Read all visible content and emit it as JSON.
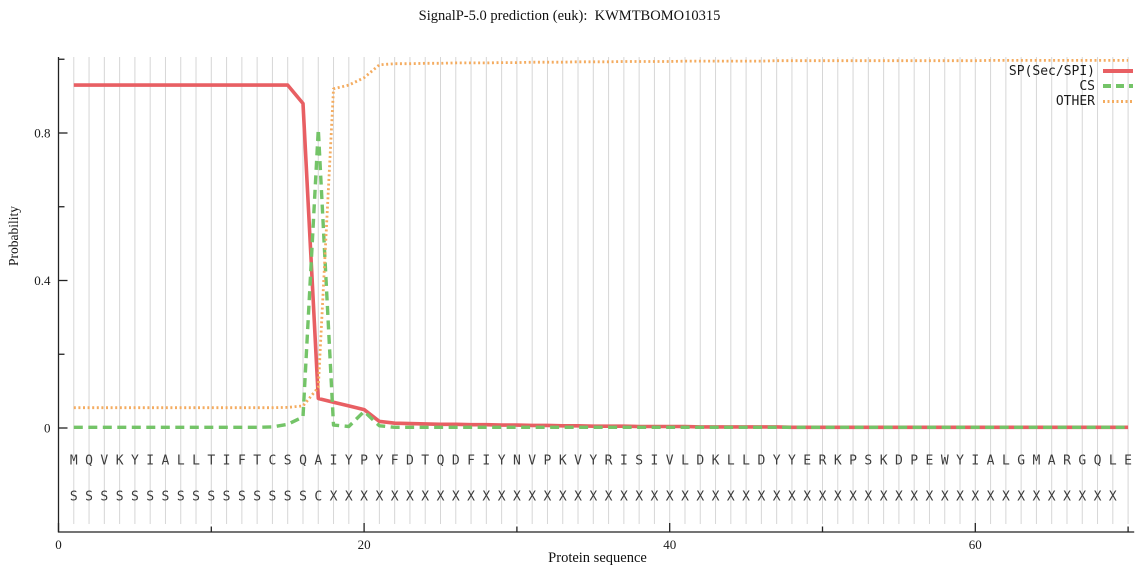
{
  "title": "SignalP-5.0 prediction (euk):  KWMTBOMO10315",
  "chart_data": {
    "type": "line",
    "title": "SignalP-5.0 prediction (euk):  KWMTBOMO10315",
    "xlabel": "Protein sequence",
    "ylabel": "Probability",
    "xlim": [
      0,
      70.4
    ],
    "ylim": [
      0,
      1.01
    ],
    "grid": "vertical-per-residue",
    "legend_position": "top-right",
    "x_ticks": {
      "major_values": [
        0,
        20,
        40,
        60
      ],
      "major_labels": [
        "0",
        "20",
        "40",
        "60"
      ],
      "minor_values": [
        10,
        30,
        50,
        70
      ]
    },
    "y_ticks": {
      "major_values": [
        0,
        0.4,
        0.8
      ],
      "major_labels": [
        "0",
        "0.4",
        "0.8"
      ],
      "minor_values": [
        0.2,
        0.6,
        1.0
      ]
    },
    "colors": {
      "grid": "#d6d6d6",
      "axis": "#222222",
      "tick_text": "#1a1a1a",
      "sequence_text": "#3b3b3b"
    },
    "x": [
      1,
      2,
      3,
      4,
      5,
      6,
      7,
      8,
      9,
      10,
      11,
      12,
      13,
      14,
      15,
      16,
      17,
      18,
      19,
      20,
      21,
      22,
      23,
      24,
      25,
      26,
      27,
      28,
      29,
      30,
      31,
      32,
      33,
      34,
      35,
      36,
      37,
      38,
      39,
      40,
      41,
      42,
      43,
      44,
      45,
      46,
      47,
      48,
      49,
      50,
      51,
      52,
      53,
      54,
      55,
      56,
      57,
      58,
      59,
      60,
      61,
      62,
      63,
      64,
      65,
      66,
      67,
      68,
      69,
      70
    ],
    "series": [
      {
        "name": "SP(Sec/SPI)",
        "color": "#e85f63",
        "style": "solid",
        "values": [
          0.93,
          0.93,
          0.93,
          0.93,
          0.93,
          0.93,
          0.93,
          0.93,
          0.93,
          0.93,
          0.93,
          0.93,
          0.93,
          0.93,
          0.93,
          0.88,
          0.08,
          0.07,
          0.06,
          0.05,
          0.018,
          0.013,
          0.012,
          0.011,
          0.01,
          0.01,
          0.009,
          0.009,
          0.008,
          0.008,
          0.007,
          0.007,
          0.006,
          0.006,
          0.005,
          0.005,
          0.005,
          0.004,
          0.004,
          0.004,
          0.004,
          0.003,
          0.003,
          0.003,
          0.003,
          0.003,
          0.003,
          0.002,
          0.002,
          0.002,
          0.002,
          0.002,
          0.002,
          0.002,
          0.002,
          0.002,
          0.002,
          0.002,
          0.002,
          0.002,
          0.002,
          0.002,
          0.002,
          0.002,
          0.002,
          0.002,
          0.002,
          0.002,
          0.002,
          0.002
        ]
      },
      {
        "name": "CS",
        "color": "#74c468",
        "style": "dashed",
        "values": [
          0.002,
          0.002,
          0.002,
          0.002,
          0.002,
          0.002,
          0.002,
          0.002,
          0.002,
          0.002,
          0.002,
          0.002,
          0.002,
          0.003,
          0.01,
          0.03,
          0.81,
          0.008,
          0.004,
          0.045,
          0.006,
          0.002,
          0.002,
          0.002,
          0.002,
          0.002,
          0.002,
          0.002,
          0.002,
          0.002,
          0.002,
          0.002,
          0.002,
          0.002,
          0.002,
          0.002,
          0.002,
          0.002,
          0.002,
          0.002,
          0.002,
          0.002,
          0.002,
          0.002,
          0.002,
          0.002,
          0.002,
          0.002,
          0.002,
          0.002,
          0.002,
          0.002,
          0.002,
          0.002,
          0.002,
          0.002,
          0.002,
          0.002,
          0.002,
          0.002,
          0.002,
          0.002,
          0.002,
          0.002,
          0.002,
          0.002,
          0.002,
          0.002,
          0.002,
          0.002
        ]
      },
      {
        "name": "OTHER",
        "color": "#f4ac60",
        "style": "dotted",
        "values": [
          0.055,
          0.055,
          0.055,
          0.055,
          0.055,
          0.055,
          0.055,
          0.055,
          0.055,
          0.055,
          0.055,
          0.055,
          0.055,
          0.055,
          0.056,
          0.06,
          0.11,
          0.92,
          0.93,
          0.95,
          0.985,
          0.988,
          0.988,
          0.989,
          0.989,
          0.99,
          0.99,
          0.99,
          0.991,
          0.991,
          0.992,
          0.992,
          0.992,
          0.993,
          0.993,
          0.993,
          0.994,
          0.994,
          0.994,
          0.994,
          0.995,
          0.995,
          0.995,
          0.995,
          0.995,
          0.995,
          0.996,
          0.996,
          0.996,
          0.996,
          0.996,
          0.996,
          0.996,
          0.996,
          0.996,
          0.996,
          0.996,
          0.996,
          0.996,
          0.996,
          0.997,
          0.997,
          0.997,
          0.997,
          0.997,
          0.997,
          0.997,
          0.997,
          0.997,
          0.997
        ]
      }
    ],
    "sequence_row": "MQVKYIALLTIFTCSQAIYPYFDTQDFIYNVPKVYRISIVLDKLLDYYERKPSKDPEWYIALGMARGQLE",
    "marker_row": "SSSSSSSSSSSSSSSSCXXXXXXXXXXXXXXXXXXXXXXXXXXXXXXXXXXXXXXXXXXXXXXXXXXXX"
  }
}
